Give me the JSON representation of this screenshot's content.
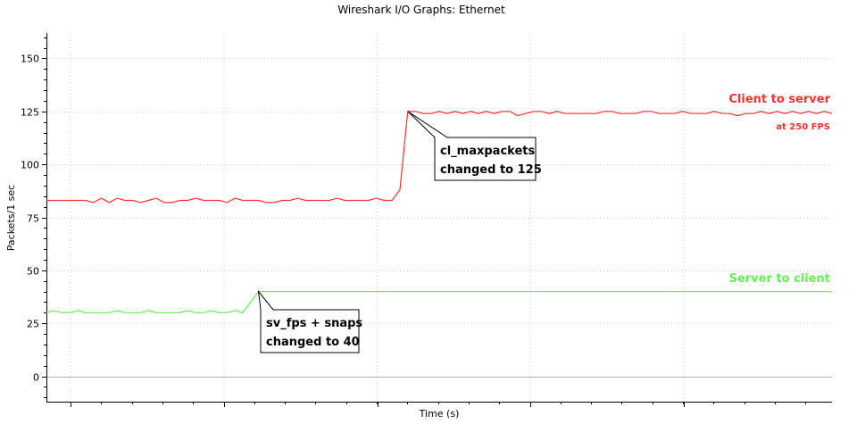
{
  "chart_data": {
    "type": "line",
    "title": "Wireshark I/O Graphs: Ethernet",
    "xlabel": "Time (s)",
    "ylabel": "Packets/1 sec",
    "ylim": [
      -12,
      162
    ],
    "y_ticks": [
      0,
      25,
      50,
      75,
      100,
      125,
      150
    ],
    "x_ticks_labeled": false,
    "grid": true,
    "series": [
      {
        "name": "Client to server",
        "note": "at 250 FPS",
        "color": "#ff3030",
        "values": [
          83,
          83,
          83,
          83,
          83,
          83,
          82,
          84,
          82,
          84,
          83,
          83,
          82,
          83,
          84,
          82,
          82,
          83,
          83,
          84,
          83,
          83,
          83,
          82,
          84,
          83,
          83,
          83,
          82,
          82,
          83,
          83,
          84,
          83,
          83,
          83,
          83,
          84,
          83,
          83,
          83,
          83,
          84,
          83,
          83,
          88,
          125,
          125,
          124,
          124,
          125,
          124,
          125,
          124,
          125,
          124,
          125,
          124,
          125,
          125,
          123,
          124,
          125,
          125,
          124,
          125,
          124,
          124,
          124,
          124,
          124,
          125,
          125,
          124,
          124,
          124,
          125,
          125,
          124,
          124,
          124,
          125,
          124,
          124,
          124,
          125,
          124,
          124,
          123,
          124,
          124,
          125,
          124,
          125,
          124,
          125,
          124,
          125,
          124,
          125,
          124
        ]
      },
      {
        "name": "Server to client",
        "color": "#66ee55",
        "values": [
          30,
          31,
          30,
          30,
          31,
          30,
          30,
          30,
          30,
          31,
          30,
          30,
          30,
          31,
          30,
          30,
          30,
          30,
          31,
          30,
          30,
          31,
          30,
          30,
          31,
          30,
          35,
          40,
          40,
          40,
          40,
          40,
          40,
          40,
          40,
          40,
          40,
          40,
          40,
          40,
          40,
          40,
          40,
          40,
          40,
          40,
          40,
          40,
          40,
          40,
          40,
          40,
          40,
          40,
          40,
          40,
          40,
          40,
          40,
          40,
          40,
          40,
          40,
          40,
          40,
          40,
          40,
          40,
          40,
          40,
          40,
          40,
          40,
          40,
          40,
          40,
          40,
          40,
          40,
          40,
          40,
          40,
          40,
          40,
          40,
          40,
          40,
          40,
          40,
          40,
          40,
          40,
          40,
          40,
          40,
          40,
          40,
          40,
          40,
          40,
          40
        ]
      }
    ],
    "annotations": [
      {
        "lines": [
          "cl_maxpackets",
          "changed to 125"
        ],
        "at_index": 46,
        "at_value": 125
      },
      {
        "lines": [
          "sv_fps + snaps",
          "changed to 40"
        ],
        "at_index": 27,
        "at_value": 40
      }
    ]
  }
}
